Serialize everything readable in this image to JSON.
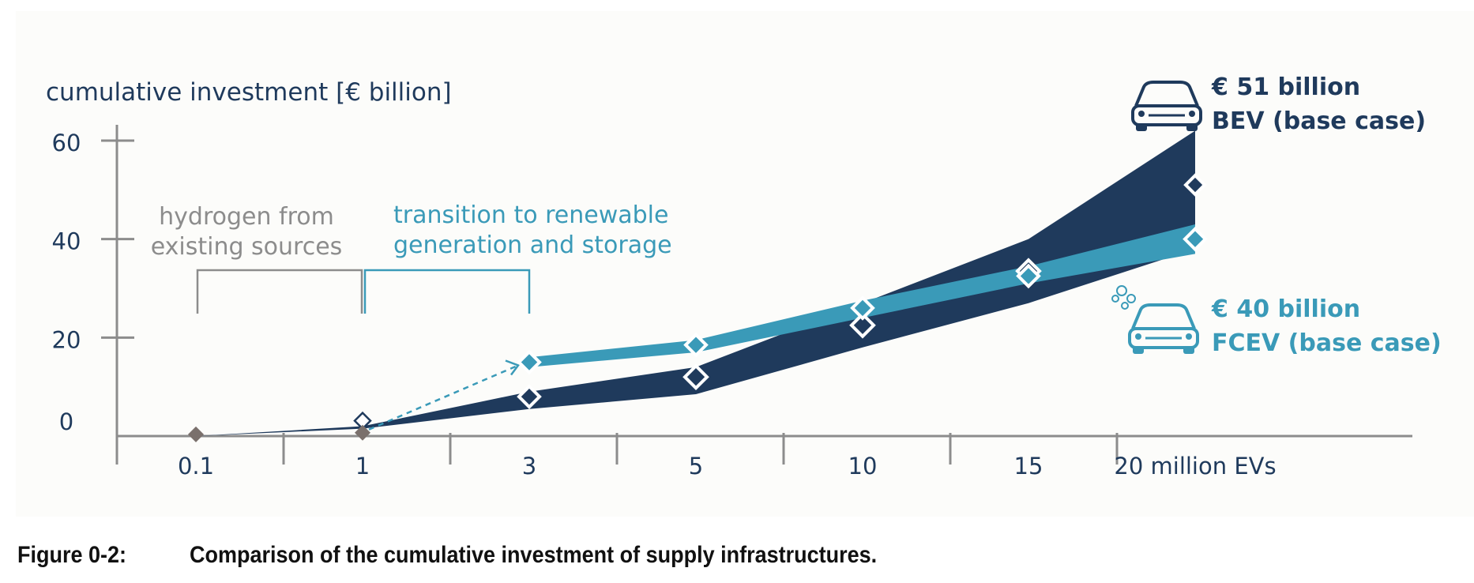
{
  "chart_data": {
    "type": "area",
    "ylabel": "cumulative investment [€ billion]",
    "ylim": [
      0,
      60
    ],
    "yticks": [
      0,
      20,
      40,
      60
    ],
    "categories": [
      "0.1",
      "1",
      "3",
      "5",
      "10",
      "15",
      "20 million EVs"
    ],
    "grid": false,
    "bev_band": {
      "lower": [
        0,
        1.5,
        5.5,
        8.5,
        18,
        27,
        38
      ],
      "upper": [
        0,
        2,
        9,
        14,
        27,
        40,
        62
      ]
    },
    "fcev_band": {
      "lower": [
        null,
        null,
        14,
        17,
        24,
        31,
        37
      ],
      "upper": [
        null,
        null,
        16,
        19.5,
        27.5,
        34.5,
        43
      ]
    },
    "series": [
      {
        "name": "BEV (base case)",
        "values": [
          null,
          1.5,
          8,
          12,
          22.5,
          33.5,
          51
        ]
      },
      {
        "name": "FCEV (base case)",
        "values": [
          0.5,
          1,
          15,
          18.5,
          26,
          32.5,
          40
        ]
      }
    ],
    "annotations": {
      "hydrogen": [
        "hydrogen from",
        "existing sources"
      ],
      "transition": [
        "transition to renewable",
        "generation and storage"
      ],
      "bev_callout": [
        "€ 51 billion",
        "BEV (base case)"
      ],
      "fcev_callout": [
        "€ 40 billion",
        "FCEV (base case)"
      ]
    },
    "colors": {
      "bev": "#1f3a5c",
      "fcev": "#3a9ab8",
      "grey": "#8c8c8c",
      "grey_marker": "#7a706c",
      "axis_text": "#1f3a5c",
      "panel": "#fcfcfa"
    }
  },
  "caption": {
    "label": "Figure 0-2:",
    "text": "Comparison of the cumulative investment of supply infrastructures."
  }
}
